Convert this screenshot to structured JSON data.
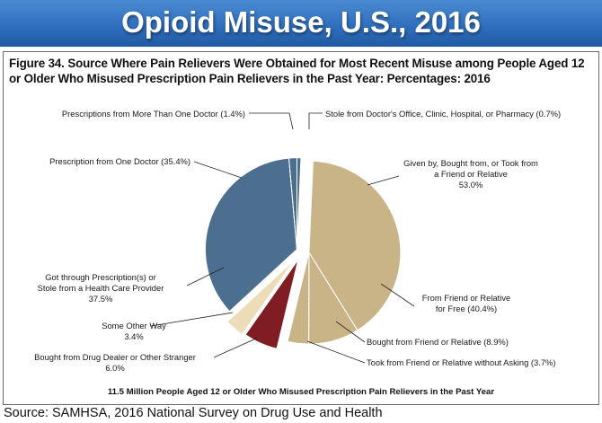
{
  "banner": {
    "title": "Opioid Misuse, U.S., 2016"
  },
  "figure": {
    "title": "Figure 34. Source Where Pain Relievers Were Obtained for Most Recent Misuse among People Aged 12 or Older Who Misused Prescription Pain Relievers in the Past Year: Percentages: 2016",
    "footnote": "11.5 Million People Aged 12 or Older Who Misused Prescription Pain Relievers in the Past Year"
  },
  "source": "Source: SAMHSA, 2016 National Survey on Drug Use and Health",
  "chart_data": {
    "type": "pie",
    "unit": "%",
    "slices": [
      {
        "label": "Stole from Doctor's Office, Clinic, Hospital, or Pharmacy (0.7%)",
        "value": 0.7,
        "group": "Got through Prescription(s) or Stole from a Health Care Provider",
        "color": "#4c6f8f"
      },
      {
        "label": "From Friend or Relative for Free (40.4%)",
        "value": 40.4,
        "group": "Given by, Bought from, or Took from a Friend or Relative",
        "color": "#c9b487"
      },
      {
        "label": "Bought from Friend or Relative (8.9%)",
        "value": 8.9,
        "group": "Given by, Bought from, or Took from a Friend or Relative",
        "color": "#c9b487"
      },
      {
        "label": "Took from Friend or Relative without Asking (3.7%)",
        "value": 3.7,
        "group": "Given by, Bought from, or Took from a Friend or Relative",
        "color": "#c9b487"
      },
      {
        "label": "Bought from Drug Dealer or Other Stranger 6.0%",
        "value": 6.0,
        "group": "Bought from Drug Dealer or Other Stranger",
        "color": "#7f1d22"
      },
      {
        "label": "Some Other Way 3.4%",
        "value": 3.4,
        "group": "Some Other Way",
        "color": "#ecdcb8"
      },
      {
        "label": "Prescription from One Doctor (35.4%)",
        "value": 35.4,
        "group": "Got through Prescription(s) or Stole from a Health Care Provider",
        "color": "#4c6f8f"
      },
      {
        "label": "Prescriptions from More Than One Doctor (1.4%)",
        "value": 1.4,
        "group": "Got through Prescription(s) or Stole from a Health Care Provider",
        "color": "#4c6f8f"
      }
    ],
    "groups": [
      {
        "name": "Given by, Bought from, or Took from a Friend or Relative",
        "value": 53.0
      },
      {
        "name": "Got through Prescription(s) or Stole from a Health Care Provider",
        "value": 37.5
      },
      {
        "name": "Bought from Drug Dealer or Other Stranger",
        "value": 6.0
      },
      {
        "name": "Some Other Way",
        "value": 3.4
      }
    ],
    "labels": {
      "stole": "Stole from Doctor's Office, Clinic, Hospital, or Pharmacy (0.7%)",
      "multi_doctor": "Prescriptions from More Than One Doctor (1.4%)",
      "one_doctor": "Prescription from One Doctor (35.4%)",
      "friend_group_l1": "Given by, Bought from, or Took from",
      "friend_group_l2": "a Friend or Relative",
      "friend_group_l3": "53.0%",
      "free_l1": "From Friend or Relative",
      "free_l2": "for Free (40.4%)",
      "bought_friend": "Bought from Friend or Relative (8.9%)",
      "took_friend": "Took from Friend or Relative without Asking (3.7%)",
      "rx_group_l1": "Got through Prescription(s) or",
      "rx_group_l2": "Stole from a Health Care Provider",
      "rx_group_l3": "37.5%",
      "other_l1": "Some Other Way",
      "other_l2": "3.4%",
      "dealer_l1": "Bought from Drug Dealer or Other Stranger",
      "dealer_l2": "6.0%"
    }
  }
}
